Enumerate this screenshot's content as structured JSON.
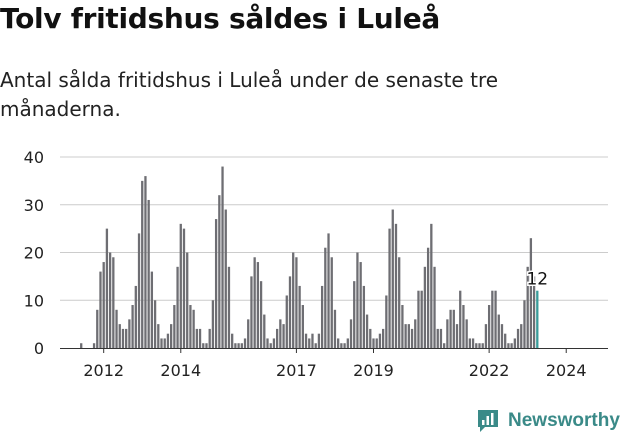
{
  "header": {
    "title": "Tolv fritidshus såldes i Luleå",
    "subtitle": "Antal sålda fritidshus i Luleå under de senaste tre månaderna."
  },
  "brand": {
    "name": "Newsworthy",
    "logo_icon": "chart-logo-icon",
    "color": "#3a8a88"
  },
  "colors": {
    "bar": "#6e6e73",
    "highlight": "#3a9c9a",
    "grid": "#cccccc",
    "text": "#222222"
  },
  "chart_data": {
    "type": "bar",
    "title": "Tolv fritidshus såldes i Luleå",
    "xlabel": "",
    "ylabel": "",
    "ylim": [
      0,
      40
    ],
    "y_ticks": [
      0,
      10,
      20,
      30,
      40
    ],
    "x_tick_labels": [
      "2012",
      "2014",
      "2017",
      "2019",
      "2022",
      "2024"
    ],
    "x_tick_dates": [
      "2012-01",
      "2014-01",
      "2017-01",
      "2019-01",
      "2022-01",
      "2024-01"
    ],
    "grid": true,
    "start": "2011-01",
    "highlight_label": "12",
    "values": [
      0,
      0,
      0,
      0,
      0,
      1,
      0,
      0,
      0,
      1,
      8,
      16,
      18,
      25,
      20,
      19,
      8,
      5,
      4,
      4,
      6,
      9,
      13,
      24,
      35,
      36,
      31,
      16,
      10,
      5,
      2,
      2,
      3,
      5,
      9,
      17,
      26,
      25,
      20,
      9,
      8,
      4,
      4,
      1,
      1,
      4,
      10,
      27,
      32,
      38,
      29,
      17,
      3,
      1,
      1,
      1,
      2,
      6,
      15,
      19,
      18,
      14,
      7,
      2,
      1,
      2,
      4,
      6,
      5,
      11,
      15,
      20,
      19,
      13,
      9,
      3,
      2,
      3,
      1,
      3,
      13,
      21,
      24,
      19,
      8,
      2,
      1,
      1,
      2,
      6,
      14,
      20,
      18,
      13,
      7,
      4,
      2,
      2,
      3,
      4,
      11,
      25,
      29,
      26,
      19,
      9,
      5,
      5,
      4,
      6,
      12,
      12,
      17,
      21,
      26,
      17,
      4,
      4,
      1,
      6,
      8,
      8,
      5,
      12,
      9,
      6,
      2,
      2,
      1,
      1,
      1,
      5,
      9,
      12,
      12,
      7,
      5,
      3,
      1,
      1,
      2,
      4,
      5,
      10,
      17,
      23,
      15,
      12
    ]
  }
}
